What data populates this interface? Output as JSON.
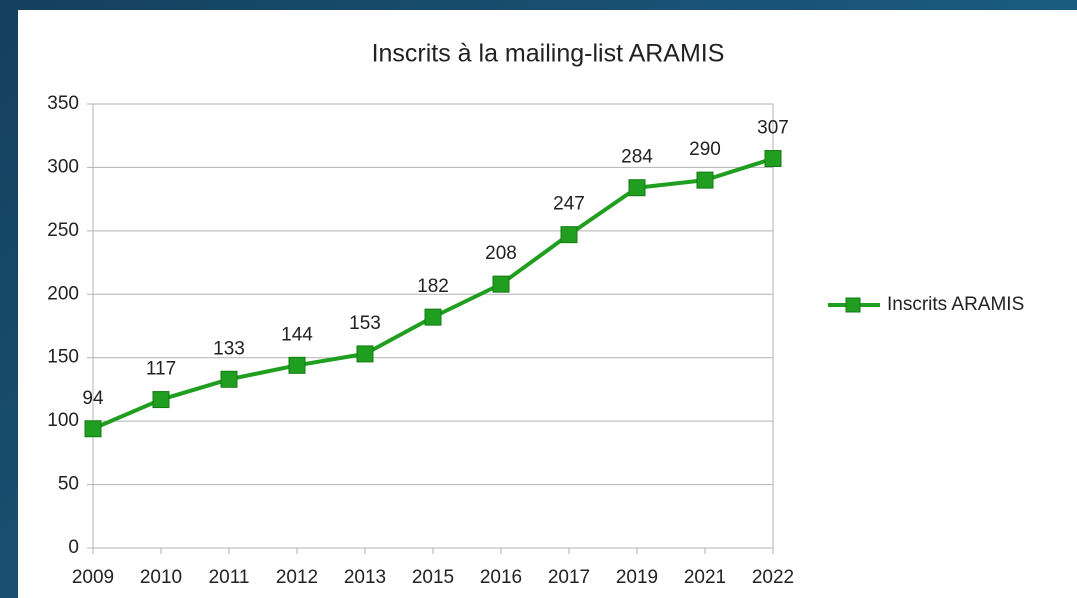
{
  "chart_data": {
    "type": "line",
    "title": "Inscrits à la mailing-list ARAMIS",
    "categories": [
      "2009",
      "2010",
      "2011",
      "2012",
      "2013",
      "2015",
      "2016",
      "2017",
      "2019",
      "2021",
      "2022"
    ],
    "series": [
      {
        "name": "Inscrits ARAMIS",
        "color": "#1f9e1f",
        "values": [
          94,
          117,
          133,
          144,
          153,
          182,
          208,
          247,
          284,
          290,
          307
        ]
      }
    ],
    "ylim": [
      0,
      350
    ],
    "yticks": [
      0,
      50,
      100,
      150,
      200,
      250,
      300,
      350
    ],
    "grid": true,
    "legend": "right",
    "data_labels": true
  }
}
